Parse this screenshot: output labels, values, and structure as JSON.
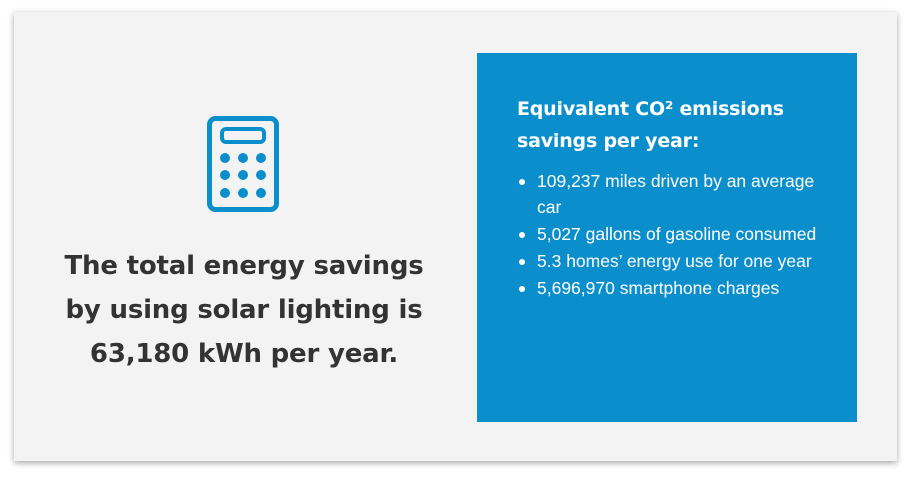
{
  "colors": {
    "card_background": "#f3f3f3",
    "panel_background": "#0b8ecc",
    "icon": "#0b8ecc",
    "headline": "#333333",
    "panel_text": "#ffffff"
  },
  "icon": {
    "name": "calculator-icon"
  },
  "headline": {
    "text": "The total energy savings by using solar lighting is 63,180 kWh per year."
  },
  "panel": {
    "title": "Equivalent CO² emissions savings per year:",
    "items": [
      {
        "label": "109,237 miles driven by an average car"
      },
      {
        "label": "5,027 gallons of gasoline consumed"
      },
      {
        "label": "5.3 homes’ energy use for one year"
      },
      {
        "label": "5,696,970 smartphone charges"
      }
    ]
  }
}
